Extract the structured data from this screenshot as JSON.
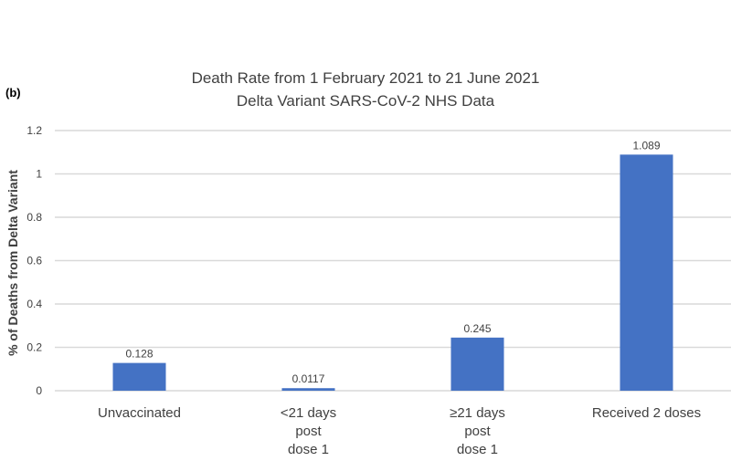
{
  "chart_data": {
    "type": "bar",
    "panel_label": "(b)",
    "title": "Death Rate from 1 February 2021 to 21 June 2021",
    "subtitle": "Delta Variant SARS-CoV-2 NHS Data",
    "xlabel": "",
    "ylabel": "% of Deaths from Delta Variant",
    "categories": [
      [
        "Unvaccinated"
      ],
      [
        "<21 days",
        "post",
        "dose 1"
      ],
      [
        "≥21 days",
        "post",
        "dose 1"
      ],
      [
        "Received 2 doses"
      ]
    ],
    "values": [
      0.128,
      0.0117,
      0.245,
      1.089
    ],
    "data_labels": [
      "0.128",
      "0.0117",
      "0.245",
      "1.089"
    ],
    "ylim": [
      0,
      1.2
    ],
    "yticks": [
      0,
      0.2,
      0.4,
      0.6,
      0.8,
      1,
      1.2
    ],
    "ytick_labels": [
      "0",
      "0.2",
      "0.4",
      "0.6",
      "0.8",
      "1",
      "1.2"
    ],
    "grid": true,
    "legend": "none",
    "bar_color": "#4472C4",
    "grid_color": "#D9D9D9"
  }
}
